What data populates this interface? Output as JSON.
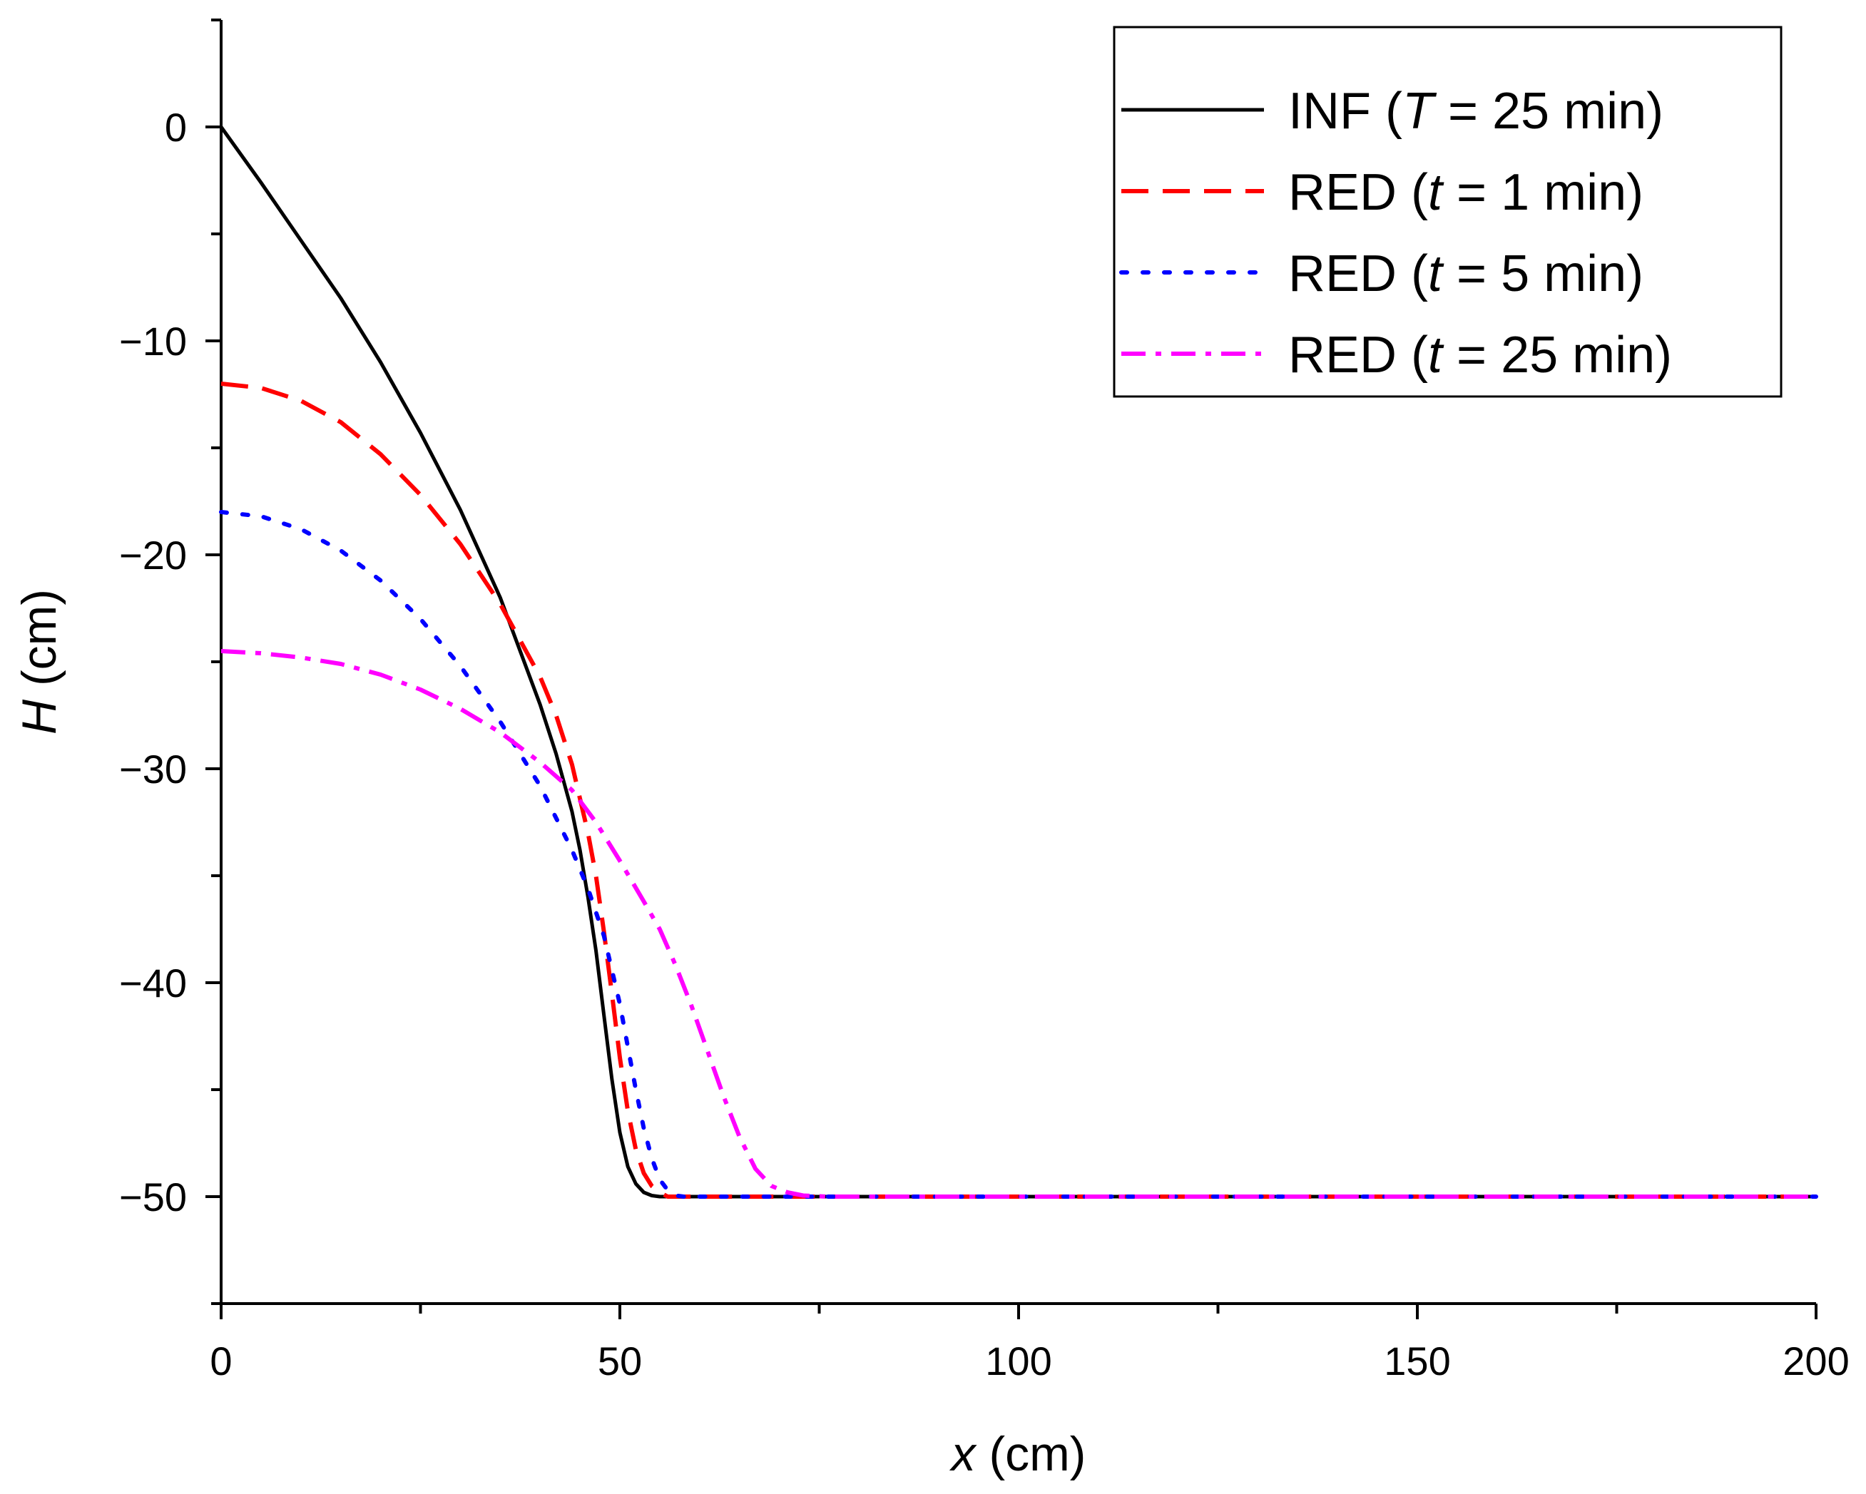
{
  "chart_data": {
    "type": "line",
    "title": "",
    "xlabel": {
      "var": "x",
      "unit": "(cm)"
    },
    "ylabel": {
      "var": "H",
      "unit": "(cm)"
    },
    "xlim": [
      0,
      200
    ],
    "ylim": [
      -55,
      5
    ],
    "xticks": [
      0,
      50,
      100,
      150,
      200
    ],
    "xtick_labels": [
      "0",
      "50",
      "100",
      "150",
      "200"
    ],
    "yticks": [
      0,
      -10,
      -20,
      -30,
      -40,
      -50
    ],
    "ytick_labels": [
      "0",
      "−10",
      "−20",
      "−30",
      "−40",
      "−50"
    ],
    "grid": false,
    "legend_position": "top-right",
    "series": [
      {
        "name": "INF (T = 25 min)",
        "legend": {
          "prefix": "INF (",
          "var": "T",
          "suffix": " = 25 min)"
        },
        "color": "#000000",
        "style": "solid",
        "x": [
          0,
          5,
          10,
          15,
          20,
          25,
          30,
          35,
          40,
          42,
          44,
          45,
          46,
          47,
          48,
          49,
          50,
          51,
          52,
          53,
          54,
          55,
          56,
          60,
          80,
          100,
          150,
          200
        ],
        "y": [
          0,
          -2.6,
          -5.3,
          -8.0,
          -11.0,
          -14.3,
          -17.9,
          -22.0,
          -27.0,
          -29.3,
          -32.0,
          -33.8,
          -36.0,
          -38.5,
          -41.5,
          -44.5,
          -47.0,
          -48.6,
          -49.4,
          -49.8,
          -49.95,
          -50,
          -50,
          -50,
          -50,
          -50,
          -50,
          -50
        ]
      },
      {
        "name": "RED (t = 1 min)",
        "legend": {
          "prefix": "RED (",
          "var": "t",
          "suffix": " = 1 min)"
        },
        "color": "#ff0000",
        "style": "dashed",
        "x": [
          0,
          5,
          10,
          15,
          20,
          25,
          30,
          35,
          40,
          42,
          44,
          46,
          47,
          48,
          49,
          50,
          51,
          52,
          53,
          54,
          55,
          56,
          60,
          80,
          100,
          150,
          200
        ],
        "y": [
          -12.0,
          -12.2,
          -12.8,
          -13.8,
          -15.3,
          -17.2,
          -19.5,
          -22.3,
          -25.7,
          -27.5,
          -29.8,
          -33.0,
          -35.0,
          -37.6,
          -40.5,
          -43.5,
          -46.0,
          -47.8,
          -48.9,
          -49.5,
          -49.8,
          -50,
          -50,
          -50,
          -50,
          -50,
          -50
        ]
      },
      {
        "name": "RED (t = 5 min)",
        "legend": {
          "prefix": "RED (",
          "var": "t",
          "suffix": " = 5 min)"
        },
        "color": "#0000ff",
        "style": "dotted",
        "x": [
          0,
          5,
          10,
          15,
          20,
          25,
          30,
          35,
          40,
          44,
          46,
          48,
          50,
          51,
          52,
          53,
          54,
          55,
          56,
          57,
          58,
          60,
          80,
          100,
          150,
          200
        ],
        "y": [
          -18.0,
          -18.2,
          -18.8,
          -19.8,
          -21.2,
          -23.0,
          -25.2,
          -27.8,
          -30.8,
          -33.8,
          -35.6,
          -37.8,
          -41.0,
          -43.0,
          -45.0,
          -46.8,
          -48.2,
          -49.2,
          -49.7,
          -49.95,
          -50,
          -50,
          -50,
          -50,
          -50,
          -50
        ]
      },
      {
        "name": "RED (t = 25 min)",
        "legend": {
          "prefix": "RED (",
          "var": "t",
          "suffix": " = 25 min)"
        },
        "color": "#ff00ff",
        "style": "dashdot",
        "x": [
          0,
          5,
          10,
          15,
          20,
          25,
          30,
          35,
          40,
          44,
          47,
          50,
          53,
          55,
          57,
          59,
          61,
          63,
          65,
          67,
          69,
          71,
          73,
          76,
          80,
          100,
          150,
          200
        ],
        "y": [
          -24.5,
          -24.6,
          -24.8,
          -25.1,
          -25.6,
          -26.3,
          -27.2,
          -28.3,
          -29.7,
          -31.0,
          -32.5,
          -34.3,
          -36.2,
          -37.5,
          -39.2,
          -41.1,
          -43.2,
          -45.3,
          -47.2,
          -48.7,
          -49.5,
          -49.8,
          -49.95,
          -50,
          -50,
          -50,
          -50,
          -50
        ]
      }
    ]
  }
}
